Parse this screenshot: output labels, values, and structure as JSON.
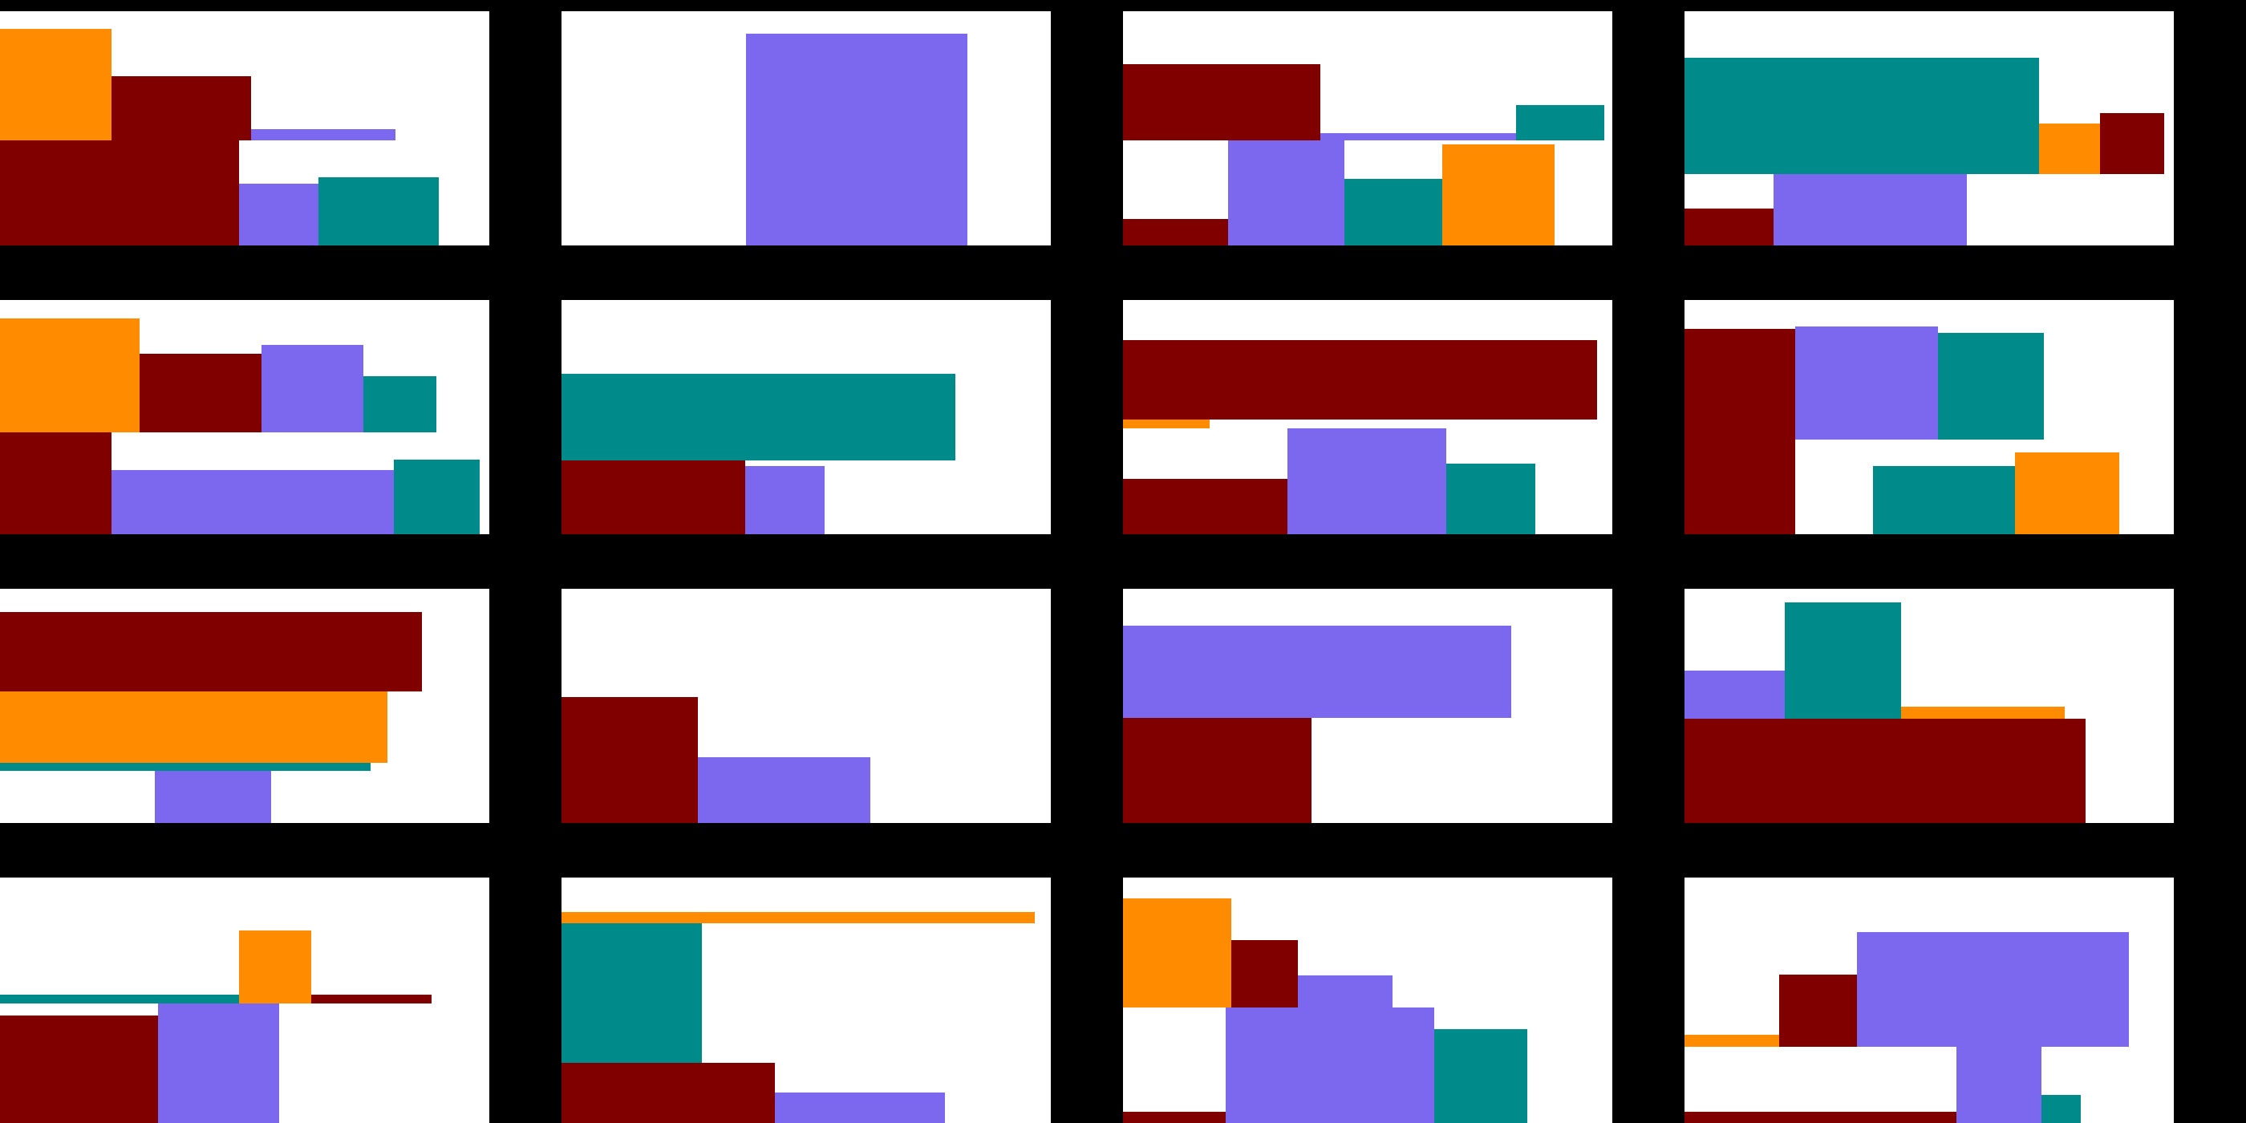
{
  "colors": {
    "background": "#000000",
    "panel": "#ffffff",
    "maroon": "#800000",
    "purple": "#7b68ee",
    "teal": "#008b8b",
    "orange": "#ff8c00"
  }
}
